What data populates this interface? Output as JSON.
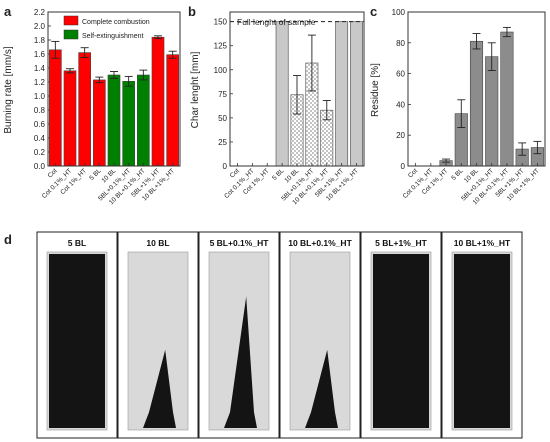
{
  "panels": {
    "a": "a",
    "b": "b",
    "c": "c",
    "d": "d"
  },
  "chart_data": [
    {
      "type": "bar",
      "panel": "a",
      "ylabel": "Burning rate [mm/s]",
      "xlabel": "",
      "ylim": [
        0.0,
        2.2
      ],
      "yticks": [
        0.0,
        0.2,
        0.4,
        0.6,
        0.8,
        1.0,
        1.2,
        1.4,
        1.6,
        1.8,
        2.0,
        2.2
      ],
      "categories": [
        "Cot",
        "Cot 0.1%_HT",
        "Cot 1%_HT",
        "5 BL",
        "10 BL",
        "5BL+0.1%_HT",
        "10 BL+0.1%_HT",
        "5BL+1%_HT",
        "10 BL+1%_HT"
      ],
      "values": [
        1.66,
        1.36,
        1.62,
        1.23,
        1.3,
        1.21,
        1.3,
        1.84,
        1.59
      ],
      "errors": [
        0.12,
        0.03,
        0.07,
        0.04,
        0.05,
        0.07,
        0.07,
        0.02,
        0.05
      ],
      "bar_colors": [
        "#ff0000",
        "#ff0000",
        "#ff0000",
        "#ff0000",
        "#008000",
        "#008000",
        "#008000",
        "#ff0000",
        "#ff0000"
      ],
      "legend": [
        {
          "label": "Complete combustion",
          "color": "#ff0000"
        },
        {
          "label": "Self-extinguishment",
          "color": "#008000"
        }
      ],
      "legend_position": "top-right",
      "grid": false
    },
    {
      "type": "bar",
      "panel": "b",
      "ylabel": "Char lenght [mm]",
      "xlabel": "",
      "ylim": [
        0,
        160
      ],
      "yticks": [
        0,
        25,
        50,
        75,
        100,
        125,
        150
      ],
      "categories": [
        "Cot",
        "Cot 0.1%_HT",
        "Cot 1%_HT",
        "5 BL",
        "10 BL",
        "5BL+0.1%_HT",
        "10 BL+0.1%_HT",
        "5BL+1%_HT",
        "10 BL+1%_HT"
      ],
      "values": [
        0,
        0,
        0,
        150,
        74,
        107,
        58,
        150,
        150
      ],
      "errors": [
        0,
        0,
        0,
        0,
        20,
        29,
        10,
        0,
        0
      ],
      "bar_fills": [
        "none",
        "none",
        "none",
        "solid",
        "checker",
        "checker",
        "checker",
        "solid",
        "solid"
      ],
      "bar_color": "#c8c8c8",
      "reference_line": {
        "value": 150,
        "label": "Full lenght of sample"
      },
      "grid": false
    },
    {
      "type": "bar",
      "panel": "c",
      "ylabel": "Residue [%]",
      "xlabel": "",
      "ylim": [
        0,
        100
      ],
      "yticks": [
        0,
        20,
        40,
        60,
        80,
        100
      ],
      "categories": [
        "Cot",
        "Cot 0.1%_HT",
        "Cot 1%_HT",
        "5 BL",
        "10 BL",
        "5BL+0.1%_HT",
        "10 BL+0.1%_HT",
        "5BL+1%_HT",
        "10 BL+1%_HT"
      ],
      "values": [
        0,
        0,
        3.5,
        34,
        81,
        71,
        87,
        11,
        12
      ],
      "errors": [
        0,
        0,
        1.0,
        9,
        5,
        9,
        3,
        4,
        4
      ],
      "bar_color": "#8c8c8c",
      "grid": false
    }
  ],
  "photos": {
    "labels": [
      "5 BL",
      "10 BL",
      "5 BL+0.1%_HT",
      "10 BL+0.1%_HT",
      "5 BL+1%_HT",
      "10 BL+1%_HT"
    ],
    "char_fraction": [
      1.0,
      0.45,
      0.75,
      0.45,
      1.0,
      1.0
    ],
    "char_color": "#141414",
    "paper_color": "#d9d9d9"
  }
}
